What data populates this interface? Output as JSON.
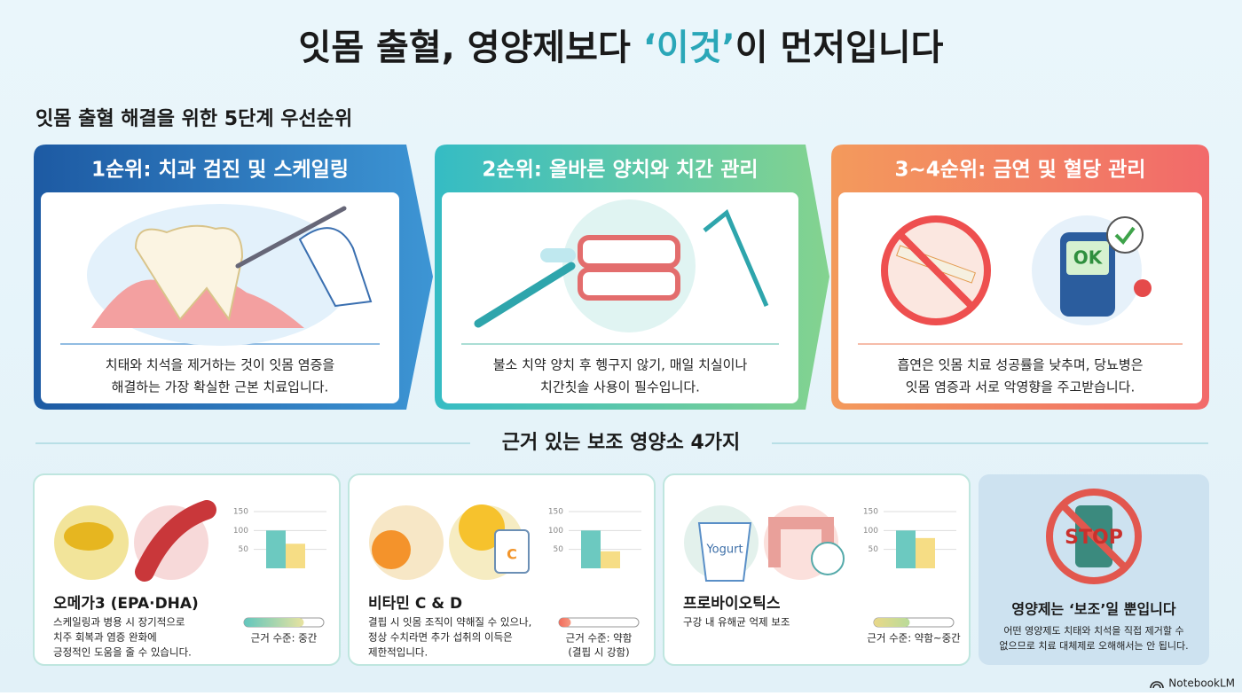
{
  "title": {
    "before": "잇몸 출혈, 영양제보다 ",
    "highlight": "‘이것’",
    "after": "이 먼저입니다"
  },
  "steps_heading": "잇몸 출혈 해결을 위한 5단계 우선순위",
  "steps": [
    {
      "title": "1순위: 치과 검진 및 스케일링",
      "lines": [
        "치태와 치석을 제거하는 것이 잇몸 염증을",
        "해결하는 가장 확실한 근본 치료입니다."
      ]
    },
    {
      "title": "2순위: 올바른 양치와 치간 관리",
      "lines": [
        "불소 치약 양치 후 헹구지 않기, 매일 치실이나",
        "치간칫솔 사용이 필수입니다."
      ]
    },
    {
      "title": "3~4순위: 금연 및 혈당 관리",
      "ok_label": "OK",
      "lines": [
        "흡연은 잇몸 치료 성공률을 낮추며, 당뇨병은",
        "잇몸 염증과 서로 악영향을 주고받습니다."
      ]
    }
  ],
  "supplements_heading": "근거 있는 보조 영양소 4가지",
  "supplements": [
    {
      "name": "오메가3 (EPA·DHA)",
      "lines": [
        "스케일링과 병용 시 장기적으로",
        "치주 회복과 염증 완화에",
        "긍정적인 도움을 줄 수 있습니다."
      ],
      "evidence": [
        "근거 수준: 중간"
      ],
      "evidence_bar": 75,
      "chart": {
        "ylim": [
          0,
          150
        ],
        "yticks": [
          50,
          100,
          150
        ],
        "values": [
          100,
          65
        ]
      }
    },
    {
      "name": "비타민 C & D",
      "vitamin_label": "C",
      "lines": [
        "결핍 시 잇몸 조직이 약해질 수 있으나,",
        "정상 수치라면 추가 섭취의 이득은",
        "제한적입니다."
      ],
      "evidence": [
        "근거 수준: 약함",
        "(결핍 시 강함)"
      ],
      "evidence_bar": 15,
      "chart": {
        "ylim": [
          0,
          150
        ],
        "yticks": [
          50,
          100,
          150
        ],
        "values": [
          100,
          45
        ]
      }
    },
    {
      "name": "프로바이오틱스",
      "yogurt_label": "Yogurt",
      "lines": [
        "구강 내 유해균 억제 보조"
      ],
      "evidence": [
        "근거 수준: 약함~중간"
      ],
      "evidence_bar": 45,
      "chart": {
        "ylim": [
          0,
          150
        ],
        "yticks": [
          50,
          100,
          150
        ],
        "values": [
          100,
          80
        ]
      }
    }
  ],
  "warning": {
    "sign": "STOP",
    "title": "영양제는 ‘보조’일 뿐입니다",
    "lines": [
      "어떤 영양제도 치태와 치석을 직접 제거할 수",
      "없으므로 치료 대체제로 오해해서는 안 됩니다."
    ]
  },
  "brand": "NotebookLM"
}
